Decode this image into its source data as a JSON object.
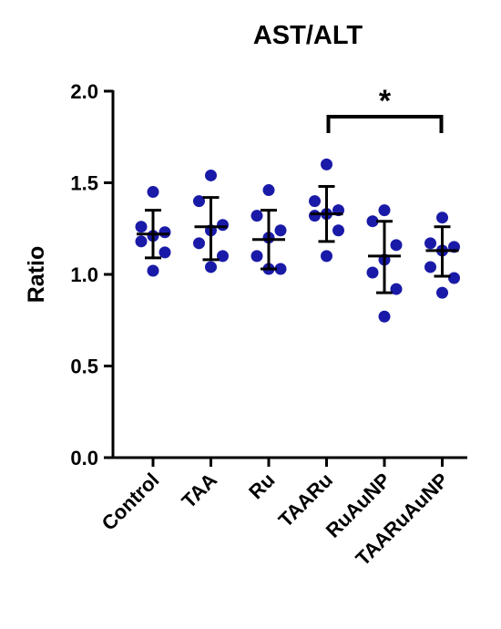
{
  "chart_data": {
    "type": "scatter",
    "title": "AST/ALT",
    "xlabel": "",
    "ylabel": "Ratio",
    "ylim": [
      0,
      2.0
    ],
    "yticks": [
      "0.0",
      "0.5",
      "1.0",
      "1.5",
      "2.0"
    ],
    "categories": [
      "Control",
      "TAA",
      "Ru",
      "TAARu",
      "RuAuNP",
      "TAARuAuNP"
    ],
    "point_color": "#1a1aa8",
    "groups": [
      {
        "category": "Control",
        "mean": 1.22,
        "sd_low": 1.09,
        "sd_high": 1.35,
        "points": [
          1.45,
          1.26,
          1.23,
          1.21,
          1.18,
          1.12,
          1.02
        ]
      },
      {
        "category": "TAA",
        "mean": 1.26,
        "sd_low": 1.08,
        "sd_high": 1.42,
        "points": [
          1.54,
          1.4,
          1.27,
          1.24,
          1.17,
          1.1,
          1.04
        ]
      },
      {
        "category": "Ru",
        "mean": 1.19,
        "sd_low": 1.03,
        "sd_high": 1.35,
        "points": [
          1.46,
          1.32,
          1.24,
          1.2,
          1.1,
          1.03,
          1.03
        ]
      },
      {
        "category": "TAARu",
        "mean": 1.33,
        "sd_low": 1.18,
        "sd_high": 1.48,
        "points": [
          1.6,
          1.4,
          1.35,
          1.33,
          1.32,
          1.24,
          1.1
        ]
      },
      {
        "category": "RuAuNP",
        "mean": 1.1,
        "sd_low": 0.9,
        "sd_high": 1.29,
        "points": [
          1.35,
          1.29,
          1.16,
          1.08,
          1.01,
          0.92,
          0.77
        ]
      },
      {
        "category": "TAARuAuNP",
        "mean": 1.13,
        "sd_low": 0.99,
        "sd_high": 1.26,
        "points": [
          1.31,
          1.17,
          1.15,
          1.13,
          1.04,
          0.98,
          0.9
        ]
      }
    ],
    "significance": {
      "label": "*",
      "from": "TAARu",
      "to": "TAARuAuNP"
    },
    "grid": false,
    "legend": "none"
  }
}
